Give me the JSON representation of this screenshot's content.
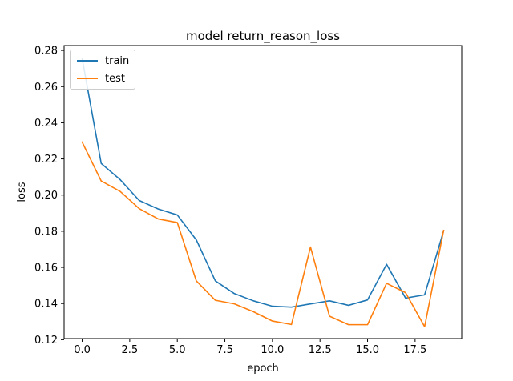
{
  "chart_data": {
    "type": "line",
    "title": "model return_reason_loss",
    "xlabel": "epoch",
    "ylabel": "loss",
    "xlim": [
      -0.95,
      19.95
    ],
    "ylim": [
      0.1206,
      0.2827
    ],
    "xticks": [
      0.0,
      2.5,
      5.0,
      7.5,
      10.0,
      12.5,
      15.0,
      17.5
    ],
    "xtick_labels": [
      "0.0",
      "2.5",
      "5.0",
      "7.5",
      "10.0",
      "12.5",
      "15.0",
      "17.5"
    ],
    "yticks": [
      0.12,
      0.14,
      0.16,
      0.18,
      0.2,
      0.22,
      0.24,
      0.26,
      0.28
    ],
    "ytick_labels": [
      "0.12",
      "0.14",
      "0.16",
      "0.18",
      "0.20",
      "0.22",
      "0.24",
      "0.26",
      "0.28"
    ],
    "grid": false,
    "legend_position": "top-left",
    "x": [
      0,
      1,
      2,
      3,
      4,
      5,
      6,
      7,
      8,
      9,
      10,
      11,
      12,
      13,
      14,
      15,
      16,
      17,
      18,
      19
    ],
    "series": [
      {
        "name": "train",
        "color": "#1f77b4",
        "values": [
          0.2755,
          0.2175,
          0.2085,
          0.197,
          0.1923,
          0.189,
          0.1752,
          0.1525,
          0.1455,
          0.1415,
          0.1385,
          0.138,
          0.1398,
          0.1415,
          0.139,
          0.142,
          0.1617,
          0.143,
          0.1448,
          0.1802
        ]
      },
      {
        "name": "test",
        "color": "#ff7f0e",
        "values": [
          0.2293,
          0.2078,
          0.202,
          0.1925,
          0.1868,
          0.1848,
          0.1525,
          0.1418,
          0.1398,
          0.1355,
          0.1303,
          0.1284,
          0.1713,
          0.133,
          0.1283,
          0.1283,
          0.1512,
          0.146,
          0.1272,
          0.1805
        ]
      }
    ]
  }
}
